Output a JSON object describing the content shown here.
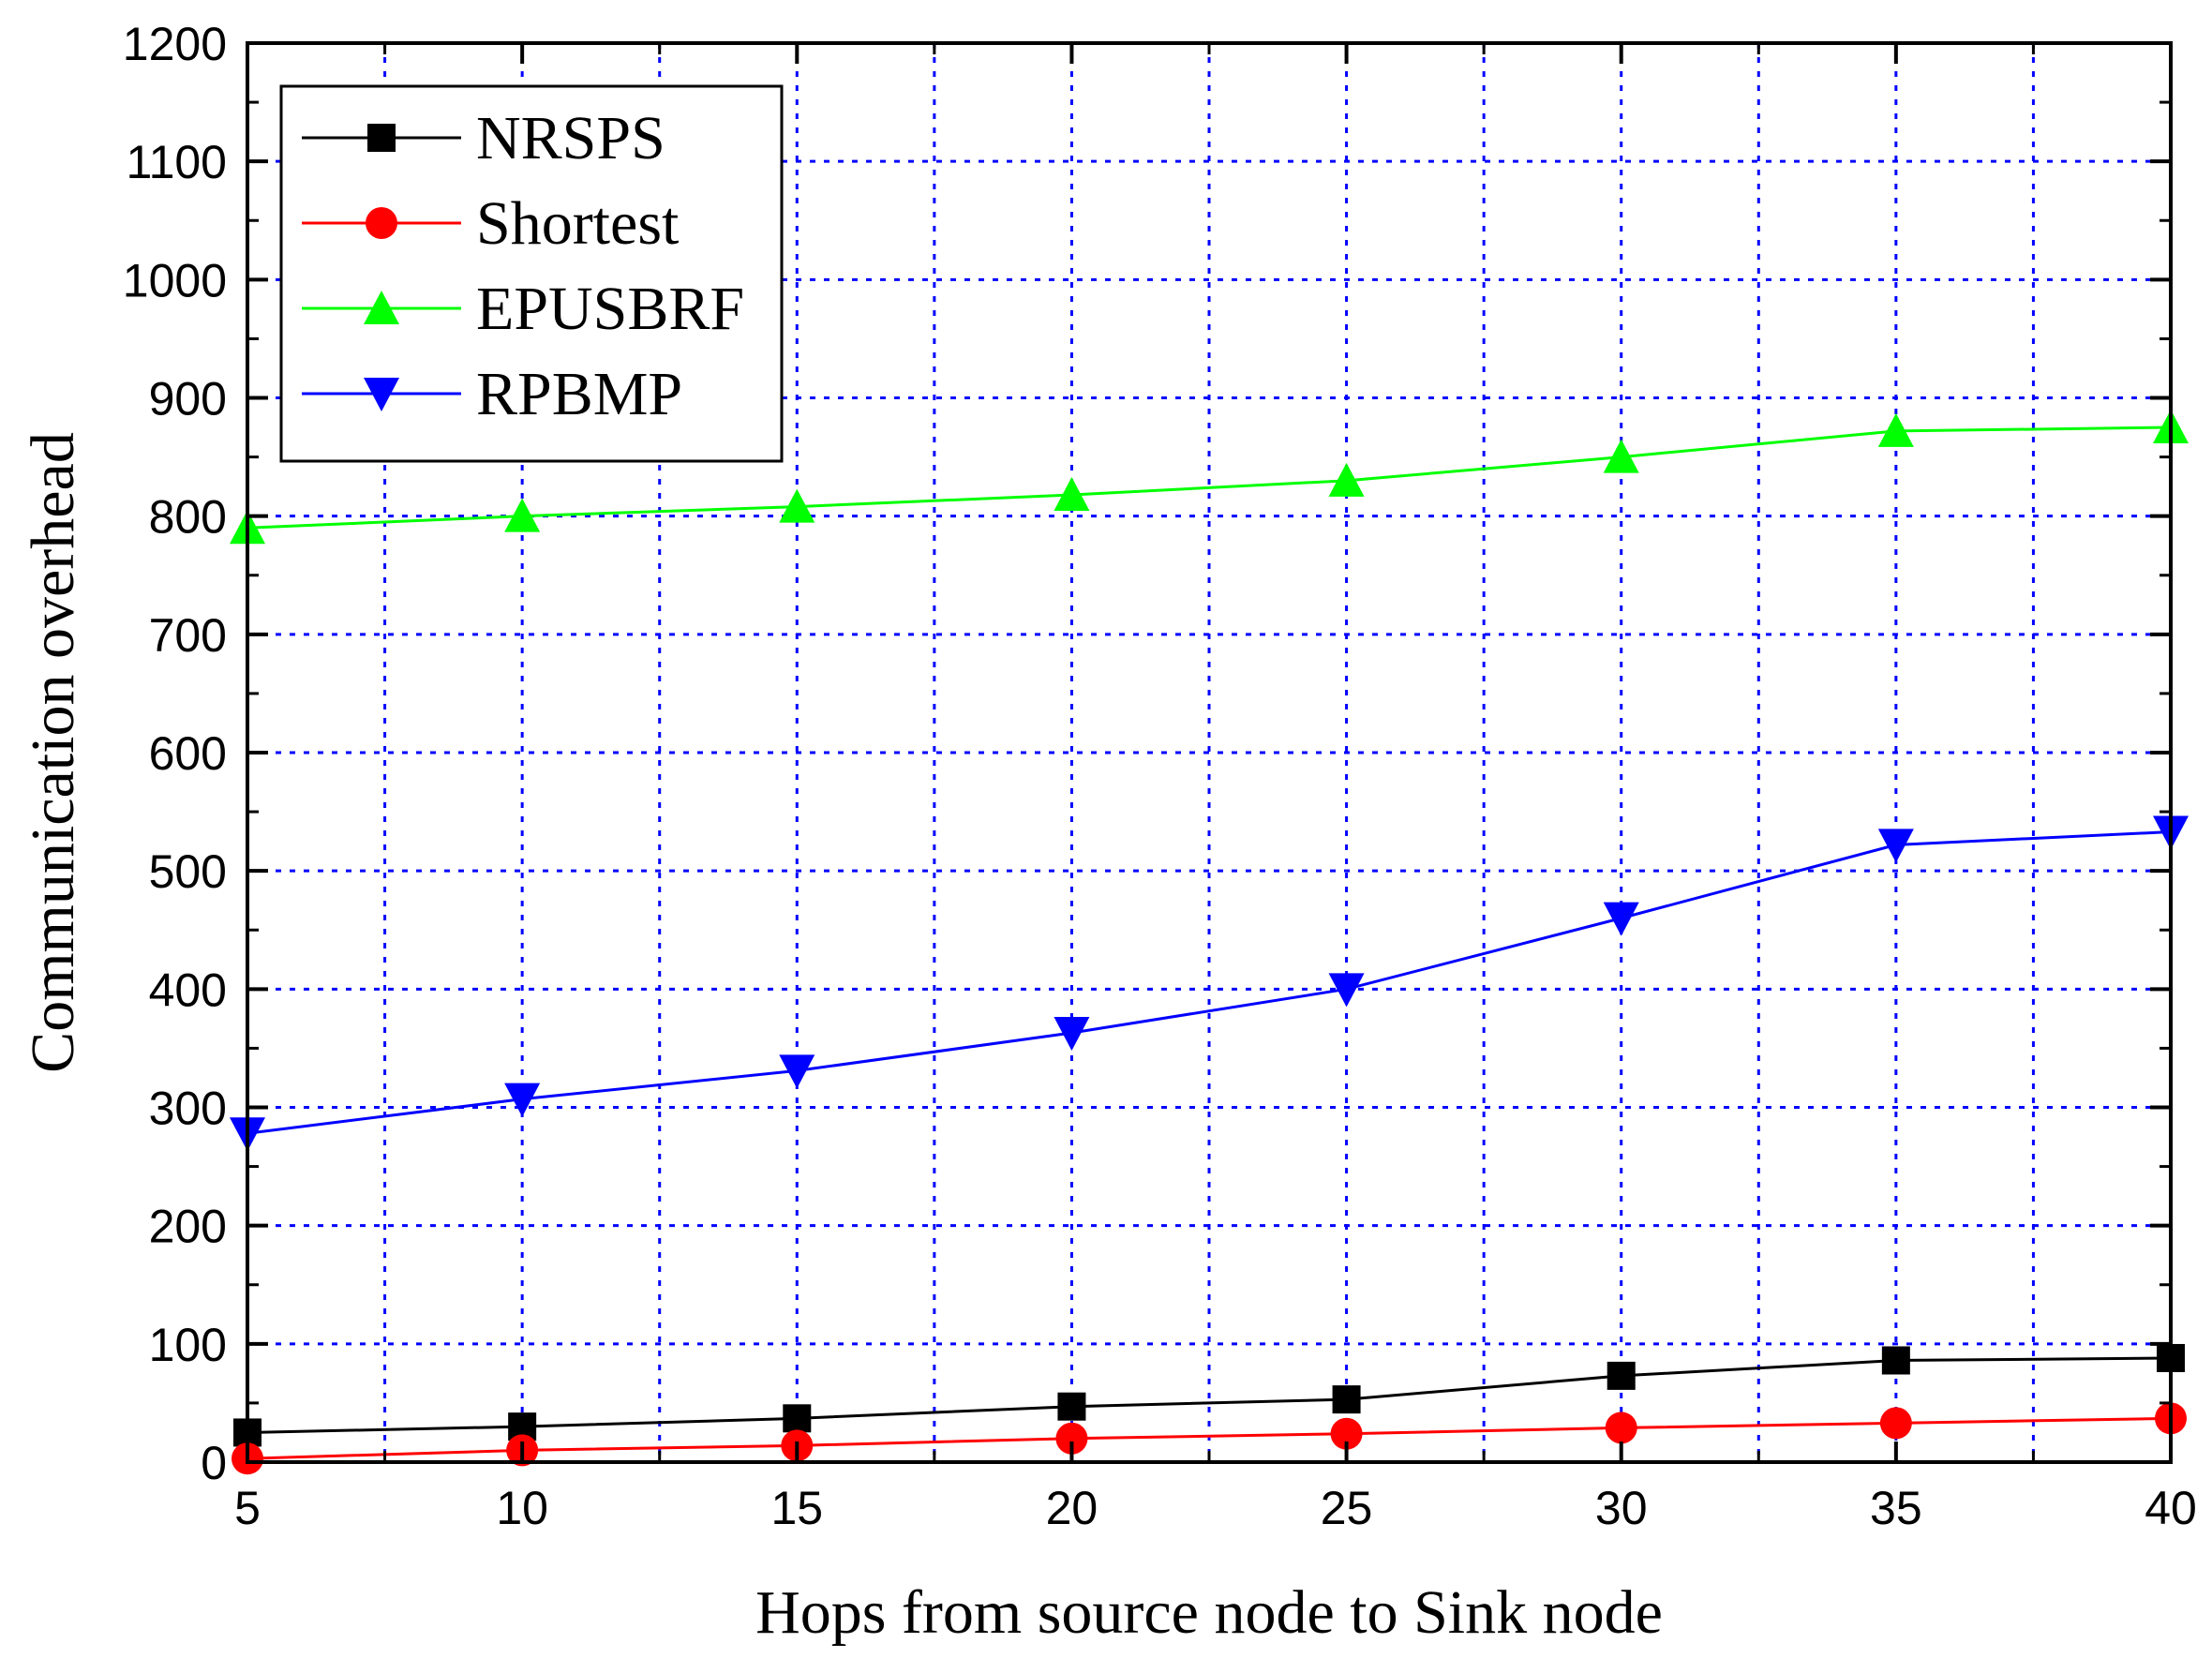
{
  "chart_data": {
    "type": "line",
    "title": "",
    "xlabel": "Hops from source node to Sink node",
    "ylabel": "Communication overhead",
    "xlim": [
      5,
      40
    ],
    "ylim": [
      0,
      1200
    ],
    "xticks": [
      5,
      10,
      15,
      20,
      25,
      30,
      35,
      40
    ],
    "yticks": [
      0,
      100,
      200,
      300,
      400,
      500,
      600,
      700,
      800,
      900,
      1000,
      1100,
      1200
    ],
    "grid": true,
    "legend_position": "top-left",
    "x": [
      5,
      10,
      15,
      20,
      25,
      30,
      35,
      40
    ],
    "series": [
      {
        "name": "NRSPS",
        "color": "#000000",
        "marker": "square",
        "values": [
          25,
          30,
          37,
          47,
          53,
          73,
          86,
          88
        ]
      },
      {
        "name": "Shortest",
        "color": "#ff0000",
        "marker": "circle",
        "values": [
          3,
          10,
          14,
          20,
          24,
          29,
          33,
          37
        ]
      },
      {
        "name": "EPUSBRF",
        "color": "#00ff00",
        "marker": "triangle-up",
        "values": [
          790,
          800,
          808,
          818,
          830,
          850,
          872,
          875
        ]
      },
      {
        "name": "RPBMP",
        "color": "#0000ff",
        "marker": "triangle-down",
        "values": [
          278,
          307,
          331,
          363,
          400,
          460,
          522,
          533
        ]
      }
    ]
  }
}
